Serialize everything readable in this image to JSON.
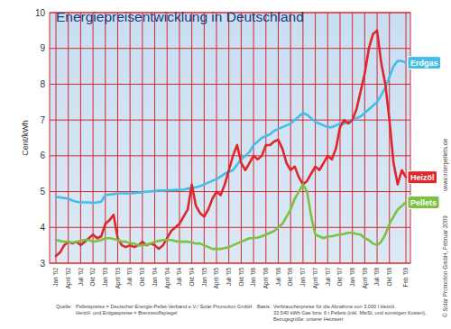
{
  "chart_data": {
    "type": "line",
    "title": "Energiepreisentwicklung in Deutschland",
    "y_label": "Cent/kWh",
    "categories": [
      "Jan '02",
      null,
      null,
      "April '02",
      null,
      null,
      "Juli '02",
      null,
      null,
      "Okt '02",
      null,
      null,
      "Jan '03",
      null,
      null,
      "April '03",
      null,
      null,
      "Juli '03",
      null,
      null,
      "Okt '03",
      null,
      null,
      "Jan '04",
      null,
      null,
      "April '04",
      null,
      null,
      "Juli '04",
      null,
      null,
      "Okt '04",
      null,
      null,
      "Jan '05",
      null,
      null,
      "April '05",
      null,
      null,
      "Juli '05",
      null,
      null,
      "Okt '05",
      null,
      null,
      "Jan '06",
      null,
      null,
      "April '06",
      null,
      null,
      "Juli '06",
      null,
      null,
      "Okt '06",
      null,
      null,
      "Jan '07",
      null,
      null,
      "April '07",
      null,
      null,
      "Juli '07",
      null,
      null,
      "Okt '07",
      null,
      null,
      "Jan '08",
      null,
      null,
      "April '08",
      null,
      null,
      "Juli '08",
      null,
      null,
      "Okt '08",
      null,
      null,
      null,
      "Feb '09"
    ],
    "series": [
      {
        "name": "Erdgas",
        "color": "#45bde6",
        "values": [
          4.85,
          4.84,
          4.82,
          4.8,
          4.75,
          4.72,
          4.7,
          4.7,
          4.7,
          4.68,
          4.7,
          4.72,
          4.9,
          4.92,
          4.93,
          4.95,
          4.95,
          4.95,
          4.95,
          4.96,
          4.97,
          4.98,
          5.0,
          5.0,
          5.02,
          5.03,
          5.03,
          5.04,
          5.04,
          5.05,
          5.05,
          5.06,
          5.08,
          5.1,
          5.12,
          5.15,
          5.2,
          5.25,
          5.3,
          5.35,
          5.42,
          5.5,
          5.55,
          5.6,
          5.75,
          5.9,
          6.0,
          6.1,
          6.3,
          6.4,
          6.5,
          6.55,
          6.6,
          6.7,
          6.75,
          6.8,
          6.85,
          6.9,
          7.0,
          7.1,
          7.2,
          7.15,
          7.05,
          6.95,
          6.9,
          6.85,
          6.8,
          6.8,
          6.85,
          6.9,
          6.9,
          6.95,
          7.0,
          7.05,
          7.1,
          7.2,
          7.3,
          7.4,
          7.5,
          7.7,
          7.9,
          8.2,
          8.5,
          8.65,
          8.65,
          8.6
        ]
      },
      {
        "name": "Heizöl",
        "color": "#e0262b",
        "values": [
          3.2,
          3.3,
          3.5,
          3.6,
          3.55,
          3.6,
          3.5,
          3.6,
          3.7,
          3.8,
          3.7,
          3.75,
          4.1,
          4.2,
          4.35,
          3.7,
          3.5,
          3.45,
          3.5,
          3.45,
          3.5,
          3.6,
          3.5,
          3.55,
          3.5,
          3.4,
          3.5,
          3.7,
          3.9,
          4.0,
          4.1,
          4.3,
          4.5,
          5.2,
          4.6,
          4.4,
          4.3,
          4.5,
          4.8,
          5.0,
          4.9,
          5.2,
          5.6,
          6.0,
          6.3,
          5.8,
          5.6,
          5.8,
          6.0,
          5.9,
          6.0,
          6.3,
          6.3,
          6.4,
          6.45,
          6.2,
          5.8,
          5.6,
          5.7,
          5.4,
          5.2,
          5.3,
          5.5,
          5.7,
          5.6,
          5.8,
          6.0,
          5.9,
          6.2,
          6.8,
          7.0,
          6.9,
          7.0,
          7.3,
          7.8,
          8.3,
          9.0,
          9.4,
          9.5,
          8.6,
          8.0,
          7.0,
          5.8,
          5.2,
          5.6,
          5.4
        ]
      },
      {
        "name": "Pellets",
        "color": "#7cc143",
        "values": [
          3.65,
          3.62,
          3.6,
          3.6,
          3.58,
          3.6,
          3.62,
          3.65,
          3.65,
          3.6,
          3.62,
          3.65,
          3.7,
          3.7,
          3.68,
          3.65,
          3.6,
          3.6,
          3.55,
          3.55,
          3.5,
          3.5,
          3.52,
          3.55,
          3.6,
          3.62,
          3.65,
          3.65,
          3.65,
          3.62,
          3.6,
          3.6,
          3.6,
          3.58,
          3.55,
          3.55,
          3.5,
          3.45,
          3.4,
          3.4,
          3.4,
          3.42,
          3.45,
          3.5,
          3.55,
          3.6,
          3.65,
          3.7,
          3.7,
          3.72,
          3.75,
          3.8,
          3.85,
          3.9,
          4.0,
          4.1,
          4.3,
          4.5,
          4.8,
          5.0,
          5.2,
          5.0,
          4.3,
          3.8,
          3.75,
          3.7,
          3.75,
          3.75,
          3.78,
          3.8,
          3.82,
          3.85,
          3.85,
          3.82,
          3.8,
          3.7,
          3.65,
          3.55,
          3.5,
          3.6,
          3.8,
          4.1,
          4.3,
          4.5,
          4.6,
          4.7
        ]
      }
    ],
    "ylim": [
      3,
      10
    ],
    "yticks": [
      3,
      4,
      5,
      6,
      7,
      8,
      9,
      10
    ],
    "grid": true,
    "legend": "right",
    "notes": {
      "source_label": "Quelle:",
      "source_lines": [
        "Pelletspreise = Deutscher Energie-Pellet-Verband e.V./ Solar Promotion GmbH",
        "Heizöl- und Erdgaspreise = Brennstoffspiegel"
      ],
      "basis_label": "Basis:",
      "basis_lines": [
        "Verbraucherpreise für die Abnahme von 3.000 l Heizöl,",
        "33.540 kWh Gas bzw. 6 t Pellets (inkl. MwSt. und sonstigen Kosten),",
        "Bezugsgröße: unterer Heizwert"
      ],
      "website": "www.interpellets.de",
      "copyright": "© Solar Promotion GmbH, Februar 2009"
    }
  }
}
